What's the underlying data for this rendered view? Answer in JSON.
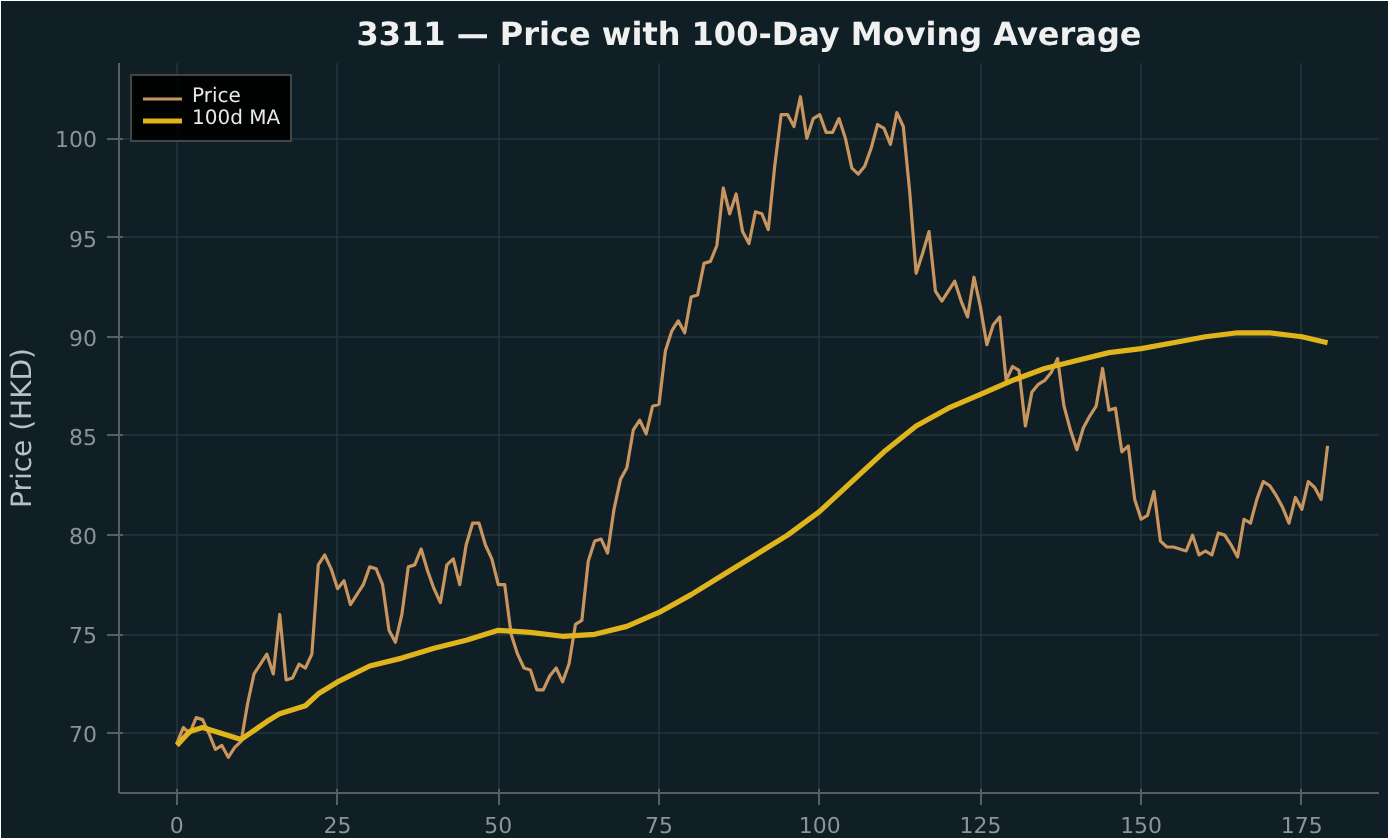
{
  "chart_data": {
    "type": "line",
    "title": "3311 — Price with 100-Day Moving Average",
    "ylabel": "Price (HKD)",
    "xlim": [
      -9,
      187
    ],
    "ylim": [
      67,
      103.8
    ],
    "xticks": [
      0,
      25,
      50,
      75,
      100,
      125,
      150,
      175
    ],
    "yticks": [
      70,
      75,
      80,
      85,
      90,
      95,
      100
    ],
    "grid": true,
    "legend": "top left",
    "line_style": "solid",
    "series": [
      {
        "name": "Price",
        "color": "#c8955f",
        "x": [
          0,
          1,
          2,
          3,
          4,
          5,
          6,
          7,
          8,
          9,
          10,
          11,
          12,
          13,
          14,
          15,
          16,
          17,
          18,
          19,
          20,
          21,
          22,
          23,
          24,
          25,
          26,
          27,
          28,
          29,
          30,
          31,
          32,
          33,
          34,
          35,
          36,
          37,
          38,
          39,
          40,
          41,
          42,
          43,
          44,
          45,
          46,
          47,
          48,
          49,
          50,
          51,
          52,
          53,
          54,
          55,
          56,
          57,
          58,
          59,
          60,
          61,
          62,
          63,
          64,
          65,
          66,
          67,
          68,
          69,
          70,
          71,
          72,
          73,
          74,
          75,
          76,
          77,
          78,
          79,
          80,
          81,
          82,
          83,
          84,
          85,
          86,
          87,
          88,
          89,
          90,
          91,
          92,
          93,
          94,
          95,
          96,
          97,
          98,
          99,
          100,
          101,
          102,
          103,
          104,
          105,
          106,
          107,
          108,
          109,
          110,
          111,
          112,
          113,
          114,
          115,
          116,
          117,
          118,
          119,
          120,
          121,
          122,
          123,
          124,
          125,
          126,
          127,
          128,
          129,
          130,
          131,
          132,
          133,
          134,
          135,
          136,
          137,
          138,
          139,
          140,
          141,
          142,
          143,
          144,
          145,
          146,
          147,
          148,
          149,
          150,
          151,
          152,
          153,
          154,
          155,
          156,
          157,
          158,
          159,
          160,
          161,
          162,
          163,
          164,
          165,
          166,
          167,
          168,
          169,
          170,
          171,
          172,
          173,
          174,
          175,
          176,
          177,
          178,
          179
        ],
        "values": [
          69.5,
          70.3,
          70.0,
          70.8,
          70.7,
          70.0,
          69.2,
          69.4,
          68.8,
          69.3,
          69.6,
          71.5,
          73.0,
          73.5,
          74.0,
          73.0,
          76.0,
          72.7,
          72.8,
          73.5,
          73.3,
          74.0,
          78.5,
          79.0,
          78.3,
          77.3,
          77.7,
          76.5,
          77.0,
          77.5,
          78.4,
          78.3,
          77.5,
          75.2,
          74.6,
          76.0,
          78.4,
          78.5,
          79.3,
          78.2,
          77.3,
          76.6,
          78.5,
          78.8,
          77.5,
          79.5,
          80.6,
          80.6,
          79.5,
          78.8,
          77.5,
          77.5,
          75.0,
          74.0,
          73.3,
          73.2,
          72.2,
          72.2,
          72.9,
          73.3,
          72.6,
          73.5,
          75.5,
          75.7,
          78.7,
          79.7,
          79.8,
          79.1,
          81.3,
          82.8,
          83.4,
          85.3,
          85.8,
          85.1,
          86.5,
          86.6,
          89.3,
          90.3,
          90.8,
          90.2,
          92.0,
          92.1,
          93.7,
          93.8,
          94.6,
          97.5,
          96.2,
          97.2,
          95.3,
          94.7,
          96.3,
          96.2,
          95.4,
          98.6,
          101.2,
          101.2,
          100.6,
          102.1,
          100.0,
          101.0,
          101.2,
          100.3,
          100.3,
          101.0,
          100.0,
          98.5,
          98.2,
          98.6,
          99.5,
          100.7,
          100.5,
          99.7,
          101.3,
          100.6,
          97.3,
          93.2,
          94.2,
          95.3,
          92.3,
          91.8,
          92.3,
          92.8,
          91.8,
          91.0,
          93.0,
          91.5,
          89.6,
          90.6,
          91.0,
          87.8,
          88.5,
          88.3,
          85.5,
          87.2,
          87.6,
          87.8,
          88.2,
          88.9,
          86.5,
          85.3,
          84.3,
          85.4,
          86.0,
          86.5,
          88.4,
          86.3,
          86.4,
          84.2,
          84.5,
          81.8,
          80.8,
          81.0,
          82.2,
          79.7,
          79.4,
          79.4,
          79.3,
          79.2,
          80.0,
          79.0,
          79.2,
          79.0,
          80.1,
          80.0,
          79.5,
          78.9,
          80.8,
          80.6,
          81.8,
          82.7,
          82.5,
          82.0,
          81.4,
          80.6,
          81.9,
          81.3,
          82.7,
          82.4,
          81.8,
          84.5
        ]
      },
      {
        "name": "100d MA",
        "color": "#e0b51c",
        "x": [
          0,
          2,
          4,
          8,
          10,
          14,
          16,
          20,
          22,
          25,
          30,
          35,
          40,
          45,
          50,
          55,
          60,
          65,
          70,
          75,
          80,
          85,
          90,
          95,
          100,
          105,
          110,
          115,
          120,
          125,
          130,
          135,
          140,
          145,
          150,
          155,
          160,
          165,
          170,
          175,
          179
        ],
        "values": [
          69.4,
          70.1,
          70.3,
          69.9,
          69.7,
          70.6,
          71.0,
          71.4,
          72.0,
          72.6,
          73.4,
          73.8,
          74.3,
          74.7,
          75.2,
          75.1,
          74.9,
          75.0,
          75.4,
          76.1,
          77.0,
          78.0,
          79.0,
          80.0,
          81.2,
          82.7,
          84.2,
          85.5,
          86.4,
          87.1,
          87.8,
          88.4,
          88.8,
          89.2,
          89.4,
          89.7,
          90.0,
          90.2,
          90.2,
          90.0,
          89.7
        ]
      }
    ]
  }
}
